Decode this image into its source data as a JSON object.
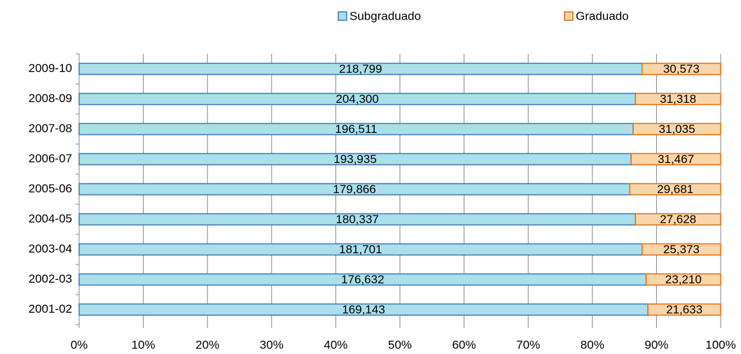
{
  "chart_data": {
    "type": "stacked100bar",
    "categories": [
      "2009-10",
      "2008-09",
      "2007-08",
      "2006-07",
      "2005-06",
      "2004-05",
      "2003-04",
      "2002-03",
      "2001-02"
    ],
    "series": [
      {
        "name": "Subgraduado",
        "color": "#aadfeb",
        "edge": "#3c78b4",
        "values": [
          218799,
          204300,
          196511,
          193935,
          179866,
          180337,
          181701,
          176632,
          169143
        ],
        "value_labels": [
          "218,799",
          "204,300",
          "196,511",
          "193,935",
          "179,866",
          "180,337",
          "181,701",
          "176,632",
          "169,143"
        ]
      },
      {
        "name": "Graduado",
        "color": "#f9d6aa",
        "edge": "#e46c0a",
        "values": [
          30573,
          31318,
          31035,
          31467,
          29681,
          27628,
          25373,
          23210,
          21633
        ],
        "value_labels": [
          "30,573",
          "31,318",
          "31,035",
          "31,467",
          "29,681",
          "27,628",
          "25,373",
          "23,210",
          "21,633"
        ]
      }
    ],
    "xlim": [
      0,
      100
    ],
    "xticks": [
      {
        "value": 0,
        "label": "0%"
      },
      {
        "value": 10,
        "label": "10%"
      },
      {
        "value": 20,
        "label": "20%"
      },
      {
        "value": 30,
        "label": "30%"
      },
      {
        "value": 40,
        "label": "40%"
      },
      {
        "value": 50,
        "label": "50%"
      },
      {
        "value": 60,
        "label": "60%"
      },
      {
        "value": 70,
        "label": "70%"
      },
      {
        "value": 80,
        "label": "80%"
      },
      {
        "value": 90,
        "label": "90%"
      },
      {
        "value": 100,
        "label": "100%"
      }
    ],
    "grid": true,
    "legend": "top"
  }
}
